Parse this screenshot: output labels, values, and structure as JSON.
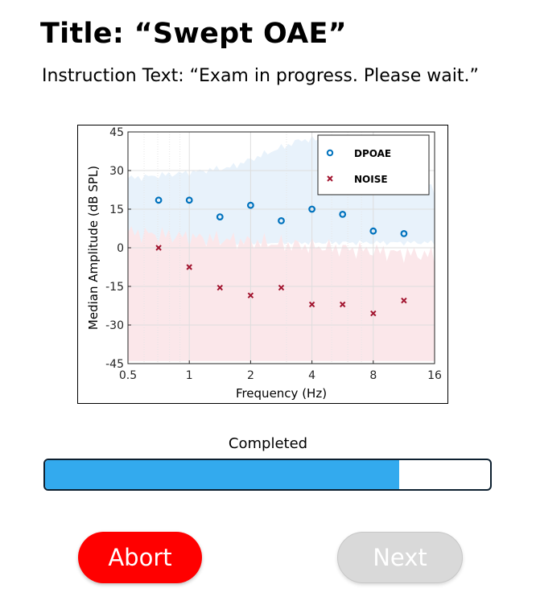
{
  "header": {
    "title": "Title: “Swept OAE”",
    "instruction": "Instruction Text: “Exam in progress. Please wait.”"
  },
  "chart_data": {
    "type": "scatter",
    "xlabel": "Frequency (Hz)",
    "ylabel": "Median Amplitude (dB SPL)",
    "x_scale": "log2",
    "xlim": [
      0.5,
      16
    ],
    "ylim": [
      -45,
      45
    ],
    "x_ticks": [
      0.5,
      1,
      2,
      4,
      8,
      16
    ],
    "x_tick_labels": [
      "0.5",
      "1",
      "2",
      "4",
      "8",
      "16"
    ],
    "y_ticks": [
      45,
      30,
      15,
      0,
      -15,
      -30,
      -45
    ],
    "y_tick_labels": [
      "45",
      "30",
      "15",
      "0",
      "-15",
      "-30",
      "-45"
    ],
    "grid": true,
    "legend_position": "top-right",
    "series": [
      {
        "name": "DPOAE",
        "marker": "o",
        "color": "#0072bd",
        "x": [
          0.707,
          1.0,
          1.414,
          2.0,
          2.828,
          4.0,
          5.657,
          8.0,
          11.314
        ],
        "y": [
          18.5,
          18.5,
          12.0,
          16.5,
          10.5,
          15.0,
          13.0,
          6.5,
          5.5
        ]
      },
      {
        "name": "NOISE",
        "marker": "x",
        "color": "#a2142f",
        "x": [
          0.707,
          1.0,
          1.414,
          2.0,
          2.828,
          4.0,
          5.657,
          8.0,
          11.314
        ],
        "y": [
          0.0,
          -7.5,
          -15.5,
          -18.5,
          -15.5,
          -22.0,
          -22.0,
          -25.5,
          -20.5
        ]
      }
    ],
    "colors": {
      "dpoae_band": "#e8f2fb",
      "noise_band": "#fbe7ea"
    }
  },
  "progress": {
    "label": "Completed",
    "fraction": 0.795,
    "fill_color": "#33aaee"
  },
  "buttons": {
    "abort_label": "Abort",
    "next_label": "Next",
    "abort_color": "#ff0000",
    "next_enabled": false
  }
}
